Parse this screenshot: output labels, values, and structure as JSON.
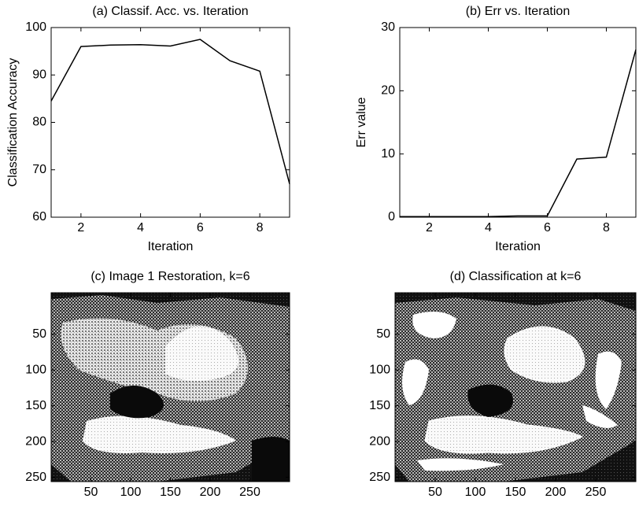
{
  "chart_data": [
    {
      "type": "line",
      "title": "(a) Classif. Acc. vs. Iteration",
      "xlabel": "Iteration",
      "ylabel": "Classification Accuracy",
      "x": [
        1,
        2,
        3,
        4,
        5,
        6,
        7,
        8,
        9
      ],
      "series": [
        {
          "color": "#000000",
          "values": [
            84.5,
            96,
            96.3,
            96.4,
            96.1,
            97.5,
            93,
            90.8,
            67
          ]
        }
      ],
      "xlim": [
        1,
        9
      ],
      "xticks": [
        2,
        4,
        6,
        8
      ],
      "ylim": [
        60,
        100
      ],
      "yticks": [
        60,
        70,
        80,
        90,
        100
      ]
    },
    {
      "type": "line",
      "title": "(b) Err vs. Iteration",
      "xlabel": "Iteration",
      "ylabel": "Err value",
      "x": [
        1,
        2,
        3,
        4,
        5,
        6,
        7,
        8,
        9
      ],
      "series": [
        {
          "color": "#000000",
          "values": [
            0.1,
            0.1,
            0.1,
            0.1,
            0.2,
            0.2,
            9.2,
            9.5,
            26.5
          ]
        }
      ],
      "xlim": [
        1,
        9
      ],
      "xticks": [
        2,
        4,
        6,
        8
      ],
      "ylim": [
        0,
        30
      ],
      "yticks": [
        0,
        10,
        20,
        30
      ]
    },
    {
      "type": "image",
      "title": "(c) Image 1 Restoration, k=6",
      "xlim": [
        0,
        300
      ],
      "xticks": [
        50,
        100,
        150,
        200,
        250
      ],
      "ylim": [
        256,
        -8
      ],
      "yticks": [
        50,
        100,
        150,
        200,
        250
      ]
    },
    {
      "type": "image",
      "title": "(d) Classification at k=6",
      "xlim": [
        0,
        300
      ],
      "xticks": [
        50,
        100,
        150,
        200,
        250
      ],
      "ylim": [
        256,
        -8
      ],
      "yticks": [
        50,
        100,
        150,
        200,
        250
      ]
    }
  ]
}
